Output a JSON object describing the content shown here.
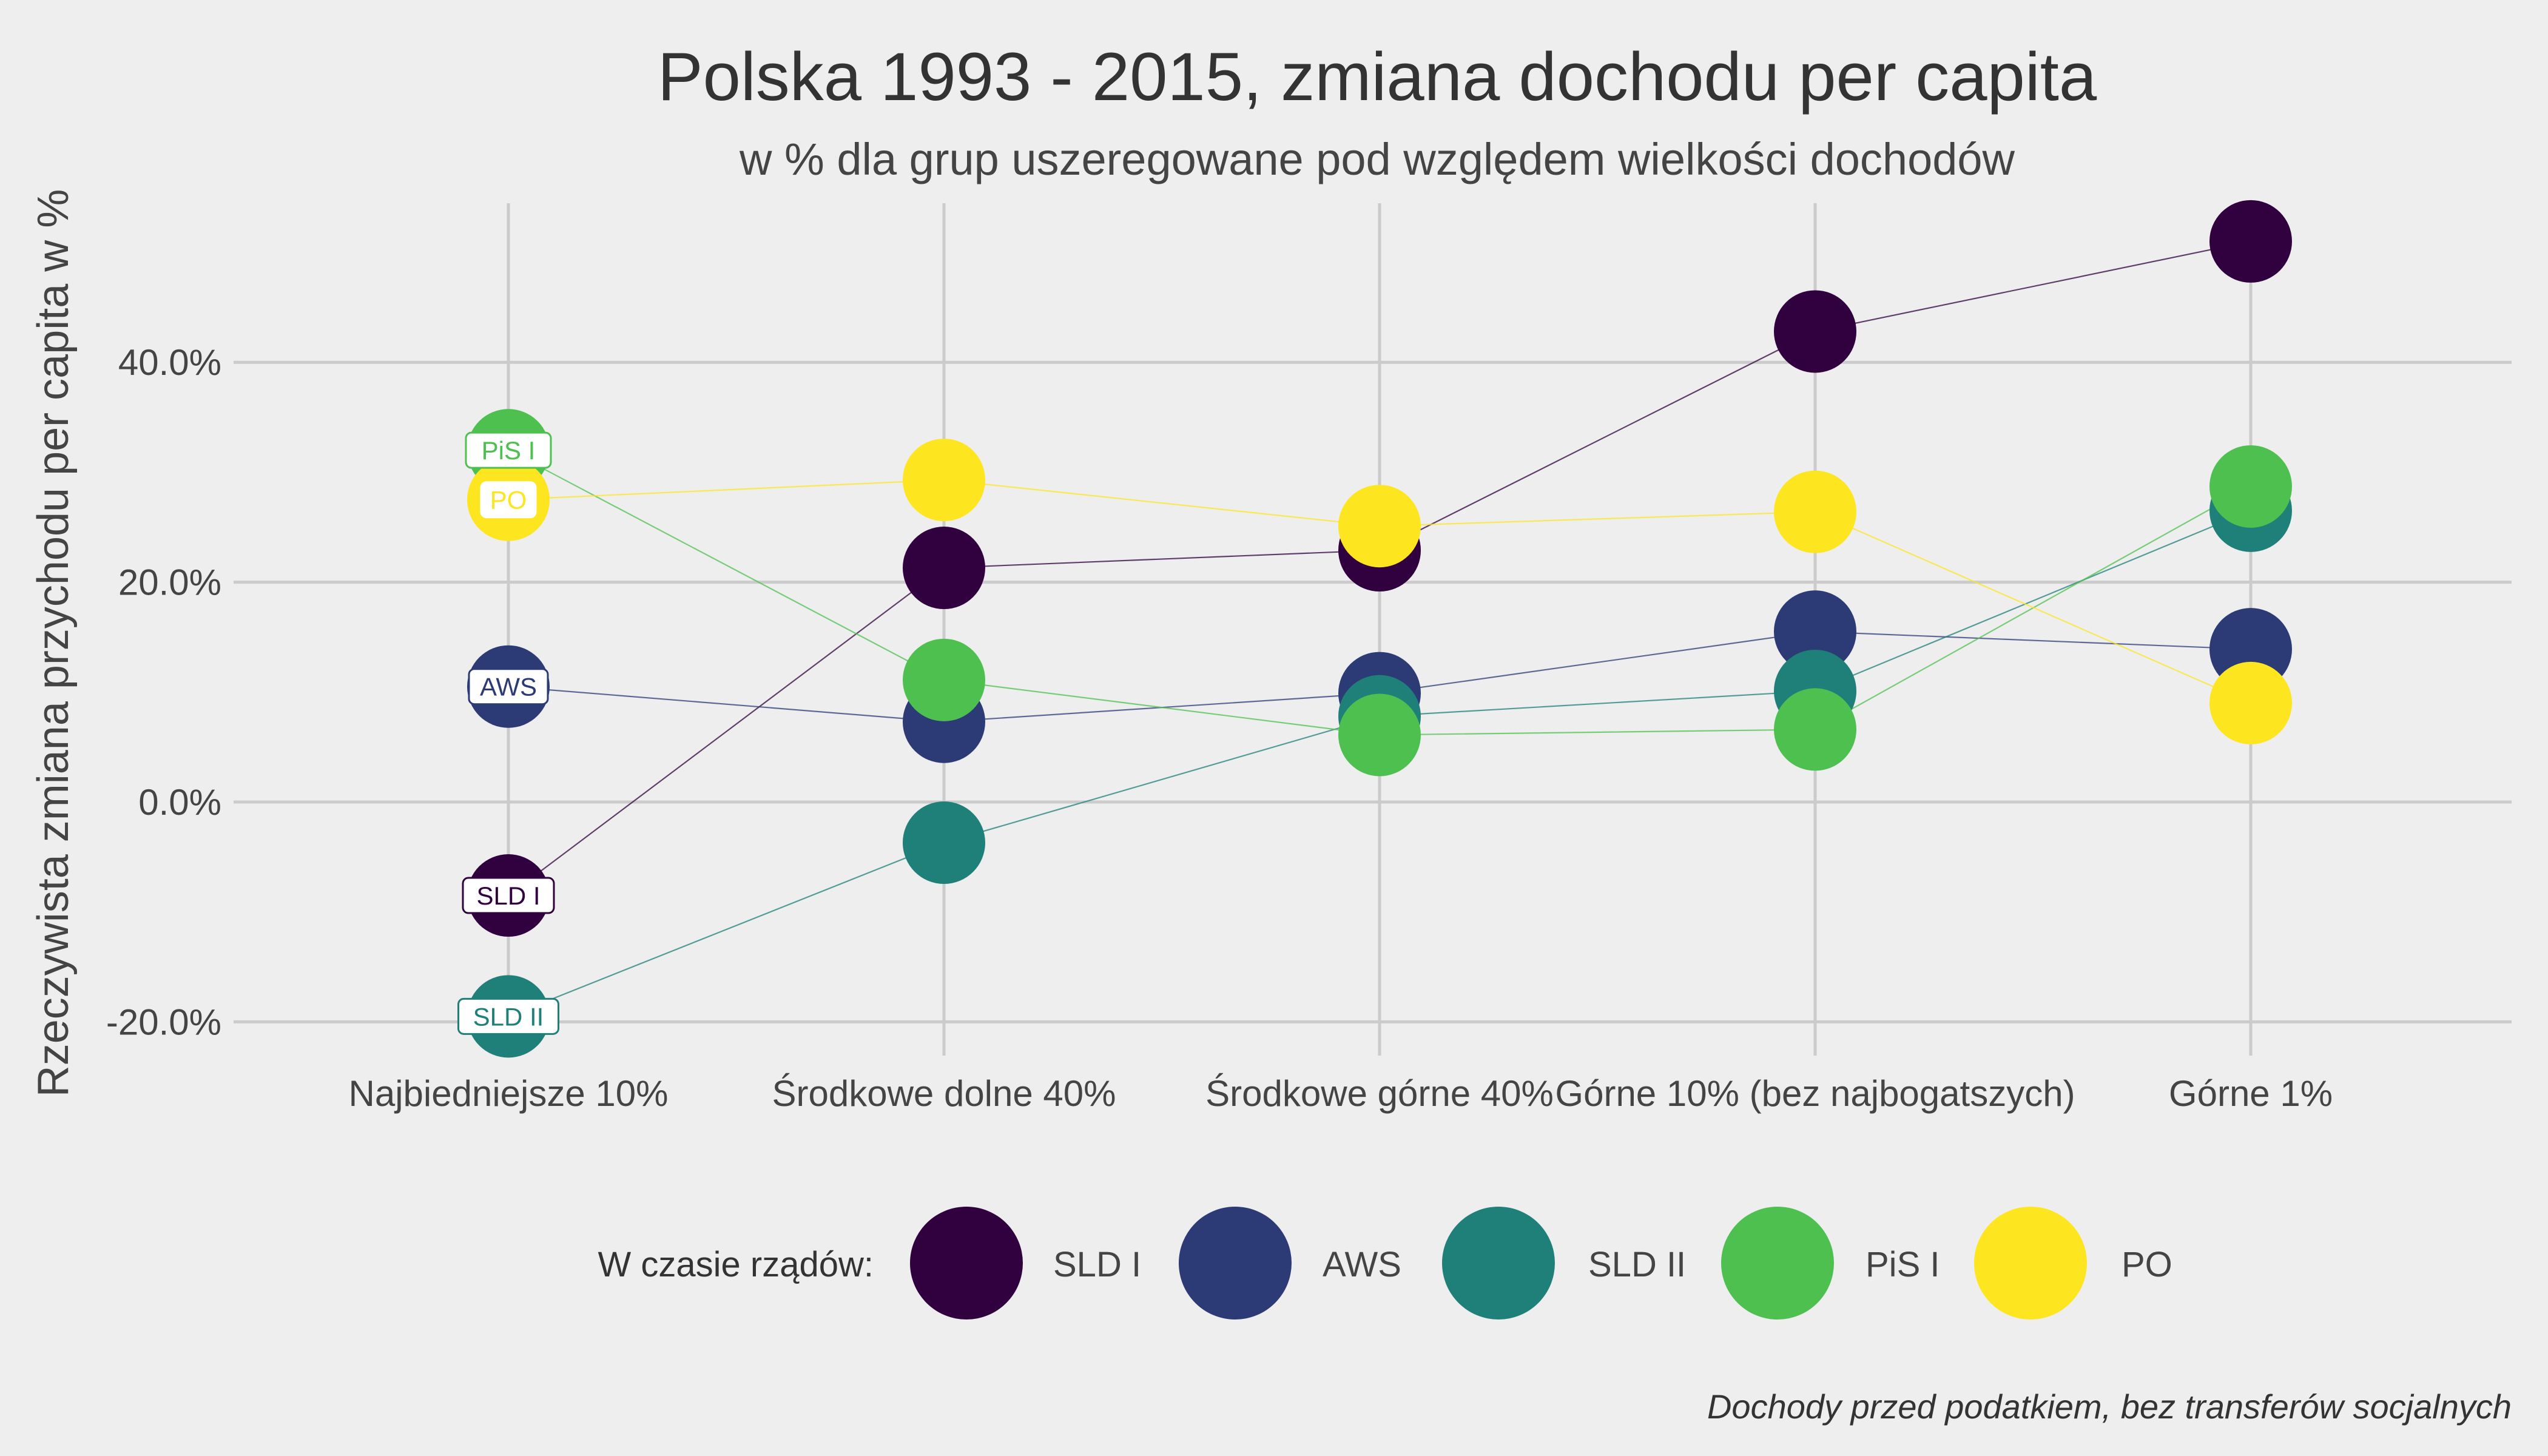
{
  "chart_data": {
    "type": "scatter",
    "title": "Polska 1993 - 2015, zmiana dochodu per capita",
    "subtitle": "w % dla grup uszeregowane pod względem wielkości dochodów",
    "ylabel": "Rzeczywista zmiana przychodu per capita w %",
    "xlabel": "",
    "caption": "Dochody przed podatkiem, bez transferów socjalnych",
    "categories": [
      "Najbiedniejsze 10%",
      "Środkowe dolne 40%",
      "Środkowe górne 40%",
      "Górne 10% (bez najbogatszych)",
      "Górne 1%"
    ],
    "yticks": [
      -20,
      0,
      20,
      40
    ],
    "ytick_labels": [
      "-20.0%",
      "0.0%",
      "20.0%",
      "40.0%"
    ],
    "ylim": [
      -22,
      55
    ],
    "grid": true,
    "legend": {
      "title": "W czasie rządów:",
      "position": "bottom"
    },
    "series": [
      {
        "name": "SLD I",
        "color": "#30003f",
        "values": [
          -8.5,
          21.3,
          22.9,
          42.8,
          51.0
        ]
      },
      {
        "name": "AWS",
        "color": "#2c3b76",
        "values": [
          10.5,
          7.3,
          9.9,
          15.5,
          13.9
        ]
      },
      {
        "name": "SLD II",
        "color": "#1f7f79",
        "values": [
          -19.5,
          -3.7,
          7.8,
          10.1,
          26.5
        ]
      },
      {
        "name": "PiS I",
        "color": "#4dc04f",
        "values": [
          32.0,
          11.1,
          6.1,
          6.6,
          28.7
        ]
      },
      {
        "name": "PO",
        "color": "#fde51f",
        "values": [
          27.5,
          29.3,
          25.1,
          26.4,
          9.0
        ]
      }
    ]
  }
}
